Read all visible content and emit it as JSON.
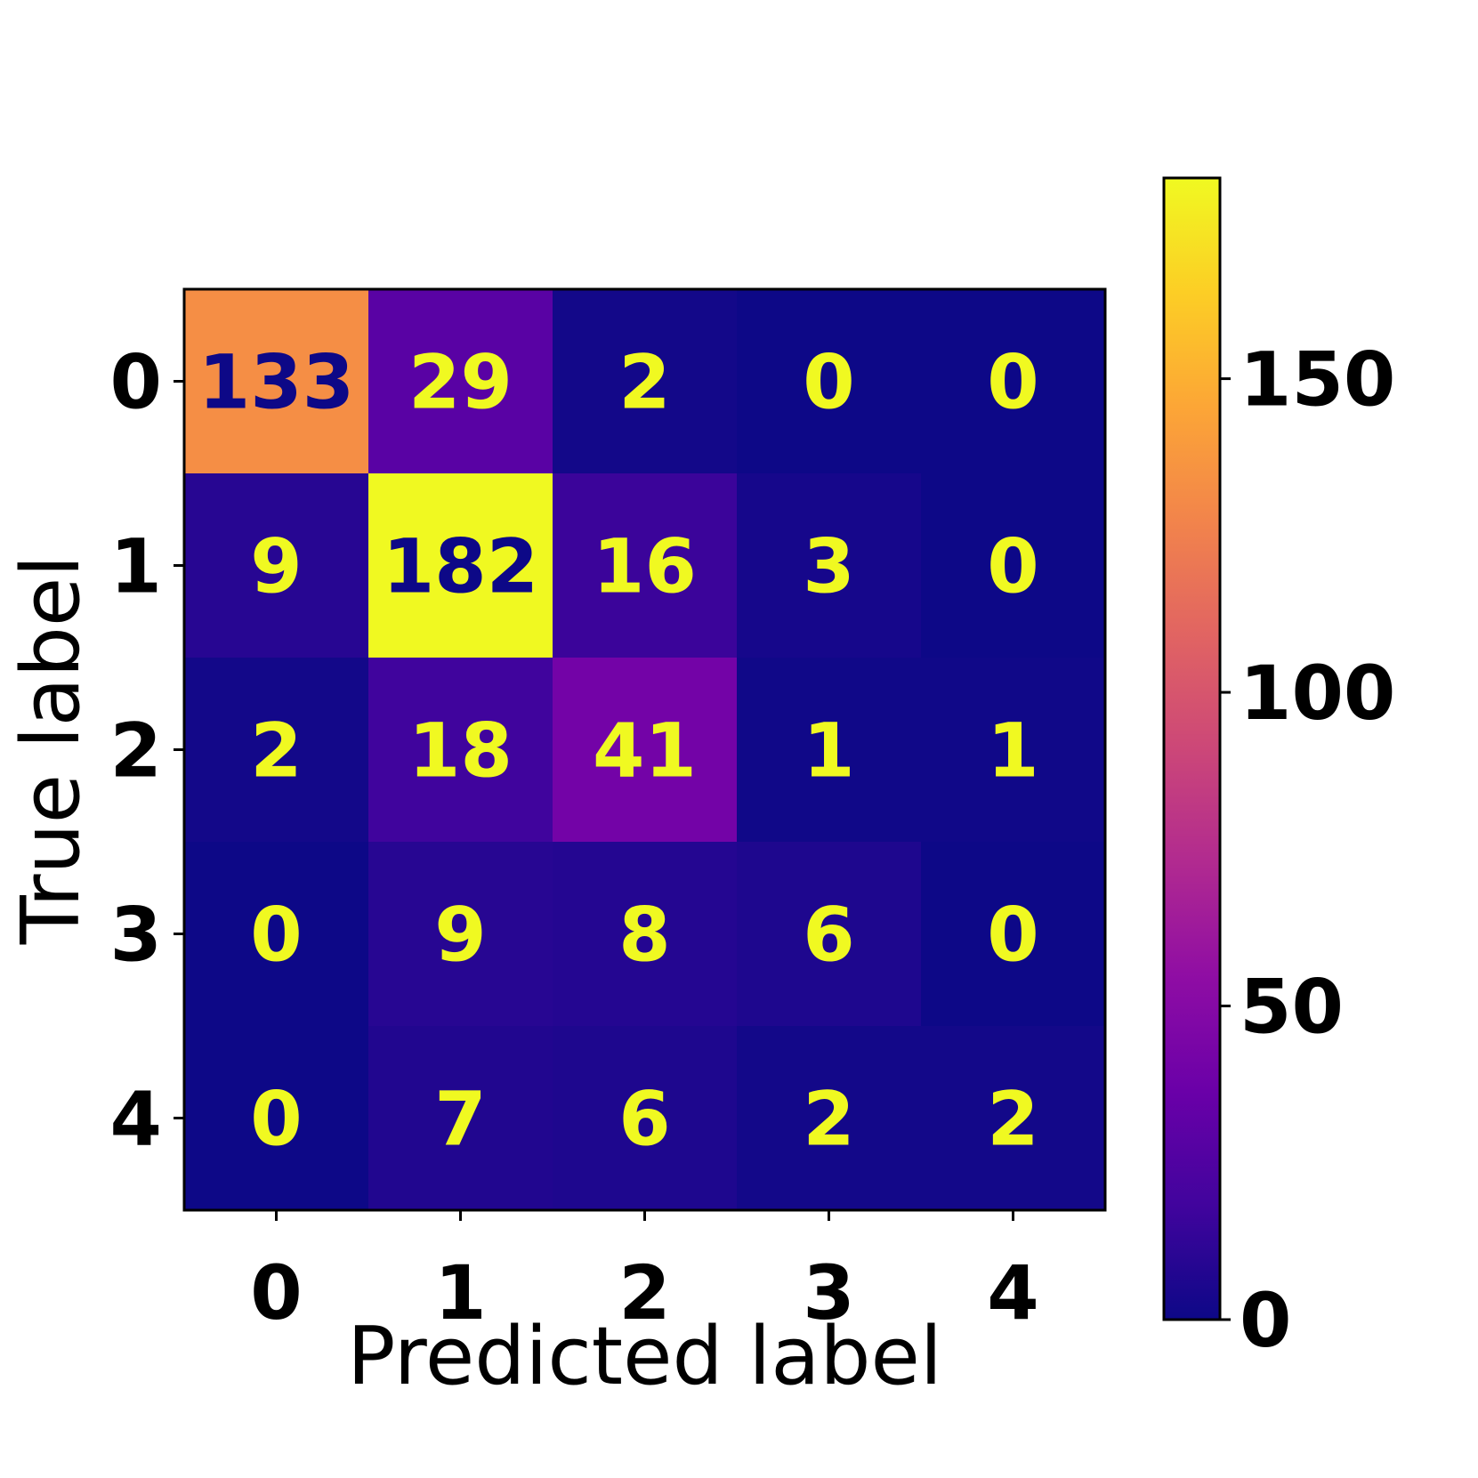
{
  "chart_data": {
    "type": "heatmap",
    "title": "",
    "xlabel": "Predicted label",
    "ylabel": "True label",
    "x_categories": [
      "0",
      "1",
      "2",
      "3",
      "4"
    ],
    "y_categories": [
      "0",
      "1",
      "2",
      "3",
      "4"
    ],
    "matrix": [
      [
        133,
        29,
        2,
        0,
        0
      ],
      [
        9,
        182,
        16,
        3,
        0
      ],
      [
        2,
        18,
        41,
        1,
        1
      ],
      [
        0,
        9,
        8,
        6,
        0
      ],
      [
        0,
        7,
        6,
        2,
        2
      ]
    ],
    "colormap": "plasma",
    "value_range": [
      0,
      182
    ],
    "colorbar": {
      "ticks": [
        0,
        50,
        100,
        150
      ],
      "tick_labels": [
        "0",
        "50",
        "100",
        "150"
      ]
    },
    "label_colors": {
      "on_dark": "#f0f921",
      "on_light": "#0d0887"
    },
    "grid": false
  }
}
